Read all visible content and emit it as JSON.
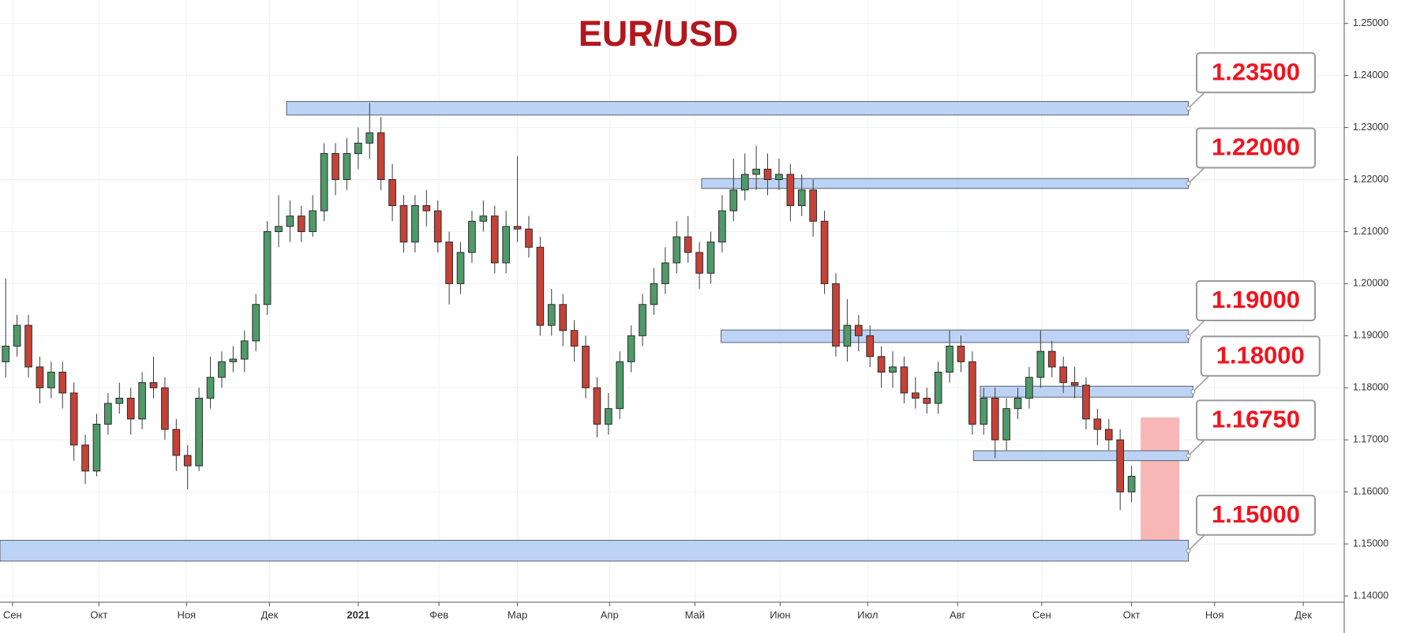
{
  "chart_data": {
    "type": "candlestick",
    "title": "EUR/USD",
    "up_color": "#4f9a69",
    "down_color": "#c64236",
    "open": [
      1.185,
      1.188,
      1.192,
      1.184,
      1.18,
      1.183,
      1.179,
      1.169,
      1.164,
      1.173,
      1.177,
      1.178,
      1.174,
      1.181,
      1.18,
      1.172,
      1.167,
      1.165,
      1.178,
      1.182,
      1.185,
      1.1855,
      1.189,
      1.196,
      1.21,
      1.211,
      1.213,
      1.21,
      1.214,
      1.225,
      1.22,
      1.225,
      1.227,
      1.229,
      1.22,
      1.215,
      1.208,
      1.215,
      1.214,
      1.208,
      1.2,
      1.206,
      1.212,
      1.213,
      1.204,
      1.211,
      1.2105,
      1.207,
      1.192,
      1.196,
      1.191,
      1.188,
      1.18,
      1.173,
      1.176,
      1.185,
      1.19,
      1.196,
      1.2,
      1.204,
      1.209,
      1.206,
      1.202,
      1.208,
      1.214,
      1.218,
      1.221,
      1.222,
      1.22,
      1.221,
      1.215,
      1.218,
      1.212,
      1.2,
      1.188,
      1.192,
      1.19,
      1.186,
      1.183,
      1.184,
      1.179,
      1.178,
      1.177,
      1.183,
      1.188,
      1.185,
      1.173,
      1.178,
      1.17,
      1.176,
      1.178,
      1.182,
      1.187,
      1.184,
      1.181,
      1.1805,
      1.174,
      1.172,
      1.17,
      1.16
    ],
    "high": [
      1.201,
      1.194,
      1.194,
      1.186,
      1.185,
      1.185,
      1.181,
      1.171,
      1.175,
      1.179,
      1.181,
      1.18,
      1.183,
      1.186,
      1.182,
      1.174,
      1.169,
      1.18,
      1.186,
      1.187,
      1.188,
      1.191,
      1.198,
      1.212,
      1.217,
      1.216,
      1.215,
      1.217,
      1.227,
      1.227,
      1.228,
      1.23,
      1.2347,
      1.232,
      1.223,
      1.217,
      1.217,
      1.218,
      1.216,
      1.21,
      1.208,
      1.214,
      1.216,
      1.215,
      1.214,
      1.2245,
      1.213,
      1.209,
      1.199,
      1.198,
      1.193,
      1.19,
      1.182,
      1.179,
      1.187,
      1.192,
      1.198,
      1.203,
      1.207,
      1.212,
      1.213,
      1.208,
      1.21,
      1.217,
      1.224,
      1.225,
      1.2265,
      1.225,
      1.224,
      1.223,
      1.221,
      1.22,
      1.214,
      1.202,
      1.197,
      1.194,
      1.192,
      1.188,
      1.187,
      1.186,
      1.182,
      1.18,
      1.185,
      1.191,
      1.19,
      1.187,
      1.18,
      1.18,
      1.178,
      1.18,
      1.184,
      1.191,
      1.189,
      1.186,
      1.184,
      1.182,
      1.176,
      1.174,
      1.172,
      1.165
    ],
    "low": [
      1.182,
      1.186,
      1.182,
      1.177,
      1.178,
      1.176,
      1.166,
      1.1615,
      1.163,
      1.171,
      1.175,
      1.171,
      1.172,
      1.178,
      1.17,
      1.164,
      1.1605,
      1.164,
      1.176,
      1.18,
      1.183,
      1.183,
      1.187,
      1.194,
      1.207,
      1.208,
      1.208,
      1.209,
      1.212,
      1.217,
      1.218,
      1.222,
      1.224,
      1.218,
      1.212,
      1.206,
      1.206,
      1.211,
      1.206,
      1.196,
      1.198,
      1.204,
      1.21,
      1.202,
      1.202,
      1.208,
      1.205,
      1.19,
      1.19,
      1.188,
      1.185,
      1.178,
      1.1705,
      1.171,
      1.174,
      1.183,
      1.188,
      1.194,
      1.198,
      1.202,
      1.204,
      1.199,
      1.2,
      1.206,
      1.212,
      1.216,
      1.218,
      1.217,
      1.218,
      1.212,
      1.213,
      1.209,
      1.198,
      1.186,
      1.185,
      1.187,
      1.184,
      1.18,
      1.18,
      1.177,
      1.176,
      1.175,
      1.175,
      1.181,
      1.183,
      1.171,
      1.171,
      1.1665,
      1.168,
      1.174,
      1.176,
      1.18,
      1.182,
      1.179,
      1.178,
      1.172,
      1.169,
      1.168,
      1.1565,
      1.158
    ],
    "close": [
      1.188,
      1.192,
      1.184,
      1.18,
      1.183,
      1.179,
      1.169,
      1.164,
      1.173,
      1.177,
      1.178,
      1.174,
      1.181,
      1.18,
      1.172,
      1.167,
      1.165,
      1.178,
      1.182,
      1.185,
      1.1855,
      1.189,
      1.196,
      1.21,
      1.211,
      1.213,
      1.21,
      1.214,
      1.225,
      1.22,
      1.225,
      1.227,
      1.229,
      1.22,
      1.215,
      1.208,
      1.215,
      1.214,
      1.208,
      1.2,
      1.206,
      1.212,
      1.213,
      1.204,
      1.211,
      1.2105,
      1.207,
      1.192,
      1.196,
      1.191,
      1.188,
      1.18,
      1.173,
      1.176,
      1.185,
      1.19,
      1.196,
      1.2,
      1.204,
      1.209,
      1.206,
      1.202,
      1.208,
      1.214,
      1.218,
      1.221,
      1.222,
      1.22,
      1.221,
      1.215,
      1.218,
      1.212,
      1.2,
      1.188,
      1.192,
      1.19,
      1.186,
      1.183,
      1.184,
      1.179,
      1.178,
      1.177,
      1.183,
      1.188,
      1.185,
      1.173,
      1.178,
      1.17,
      1.176,
      1.178,
      1.182,
      1.187,
      1.184,
      1.181,
      1.1805,
      1.174,
      1.172,
      1.17,
      1.16,
      1.163
    ],
    "xlim": [
      0,
      118.2
    ],
    "xticks": [
      {
        "value": 1.1,
        "label": "Сен"
      },
      {
        "value": 8.7,
        "label": "Окт"
      },
      {
        "value": 16.4,
        "label": "Ноя"
      },
      {
        "value": 23.7,
        "label": "Дек"
      },
      {
        "value": 31.5,
        "label": "2021"
      },
      {
        "value": 38.6,
        "label": "Фев"
      },
      {
        "value": 45.5,
        "label": "Мар"
      },
      {
        "value": 53.6,
        "label": "Апр"
      },
      {
        "value": 61.1,
        "label": "Май"
      },
      {
        "value": 68.6,
        "label": "Июн"
      },
      {
        "value": 76.3,
        "label": "Июл"
      },
      {
        "value": 84.2,
        "label": "Авг"
      },
      {
        "value": 91.6,
        "label": "Сен"
      },
      {
        "value": 99.5,
        "label": "Окт"
      },
      {
        "value": 106.8,
        "label": "Ноя"
      },
      {
        "value": 114.6,
        "label": "Дек"
      }
    ],
    "ylim": [
      1.1388,
      1.2545
    ],
    "yticks": [
      {
        "value": 1.25,
        "label": "1.25000"
      },
      {
        "value": 1.24,
        "label": "1.24000"
      },
      {
        "value": 1.23,
        "label": "1.23000"
      },
      {
        "value": 1.22,
        "label": "1.22000"
      },
      {
        "value": 1.21,
        "label": "1.21000"
      },
      {
        "value": 1.2,
        "label": "1.20000"
      },
      {
        "value": 1.19,
        "label": "1.19000"
      },
      {
        "value": 1.18,
        "label": "1.18000"
      },
      {
        "value": 1.17,
        "label": "1.17000"
      },
      {
        "value": 1.16,
        "label": "1.16000"
      },
      {
        "value": 1.15,
        "label": "1.15000"
      },
      {
        "value": 1.14,
        "label": "1.14000"
      }
    ],
    "grid": true,
    "zones": [
      {
        "value": 1.235,
        "label": "1.23500",
        "band": [
          1.2324,
          1.235
        ],
        "start": 25.2,
        "end": 104.5
      },
      {
        "value": 1.22,
        "label": "1.22000",
        "band": [
          1.2183,
          1.2202
        ],
        "start": 61.7,
        "end": 104.5
      },
      {
        "value": 1.19,
        "label": "1.19000",
        "band": [
          1.1887,
          1.1911
        ],
        "start": 63.4,
        "end": 104.5
      },
      {
        "value": 1.18,
        "label": "1.18000",
        "band": [
          1.1782,
          1.1803
        ],
        "start": 86.2,
        "end": 104.9
      },
      {
        "value": 1.1675,
        "label": "1.16750",
        "band": [
          1.166,
          1.1679
        ],
        "start": 85.6,
        "end": 104.5
      },
      {
        "value": 1.15,
        "label": "1.15000",
        "band": [
          1.1467,
          1.1507
        ],
        "start": 0,
        "end": 104.5
      }
    ],
    "zone_color": "#bcd3f5",
    "highlight": {
      "x": [
        100.3,
        103.7
      ],
      "range": [
        1.1491,
        1.1743
      ],
      "color": "#f6aaaa"
    }
  }
}
